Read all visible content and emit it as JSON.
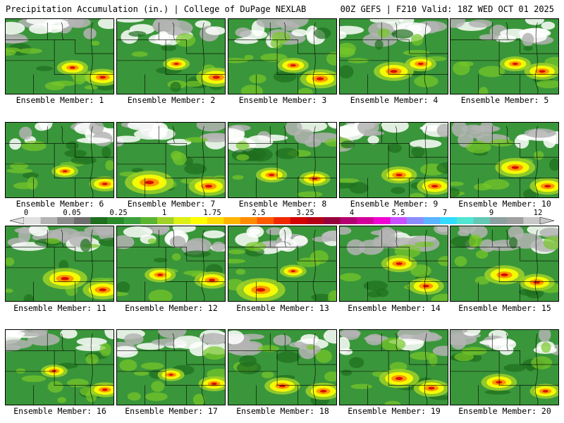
{
  "header": {
    "left": "Precipitation Accumulation (in.) | College of DuPage NEXLAB",
    "right": "00Z GEFS | F210 Valid: 18Z WED OCT 01 2025"
  },
  "panels": [
    {
      "label": "Ensemble Member: 1"
    },
    {
      "label": "Ensemble Member: 2"
    },
    {
      "label": "Ensemble Member: 3"
    },
    {
      "label": "Ensemble Member: 4"
    },
    {
      "label": "Ensemble Member: 5"
    },
    {
      "label": "Ensemble Member: 6"
    },
    {
      "label": "Ensemble Member: 7"
    },
    {
      "label": "Ensemble Member: 8"
    },
    {
      "label": "Ensemble Member: 9"
    },
    {
      "label": "Ensemble Member: 10"
    },
    {
      "label": "Ensemble Member: 11"
    },
    {
      "label": "Ensemble Member: 12"
    },
    {
      "label": "Ensemble Member: 13"
    },
    {
      "label": "Ensemble Member: 14"
    },
    {
      "label": "Ensemble Member: 15"
    },
    {
      "label": "Ensemble Member: 16"
    },
    {
      "label": "Ensemble Member: 17"
    },
    {
      "label": "Ensemble Member: 18"
    },
    {
      "label": "Ensemble Member: 19"
    },
    {
      "label": "Ensemble Member: 20"
    }
  ],
  "colorbar": {
    "tick_labels": [
      "0",
      "0.05",
      "0.25",
      "1",
      "1.75",
      "2.5",
      "3.25",
      "4",
      "5.5",
      "7",
      "9",
      "12"
    ],
    "colors": [
      "#e0e0e0",
      "#b4b4b4",
      "#8c8c8c",
      "#6e6e6e",
      "#1e6e1e",
      "#2a8a2a",
      "#3ca03c",
      "#5ab432",
      "#a0d228",
      "#dcf014",
      "#ffff00",
      "#ffdc00",
      "#ffb400",
      "#ff8c00",
      "#ff5a00",
      "#f02800",
      "#d20000",
      "#b40014",
      "#96003c",
      "#b4006e",
      "#d2009b",
      "#f000d2",
      "#c850ff",
      "#8c8cff",
      "#5ab4ff",
      "#32dcff",
      "#50e6d2",
      "#64c8b4",
      "#8ca0a0",
      "#a0a0a0",
      "#c8c8c8"
    ]
  }
}
